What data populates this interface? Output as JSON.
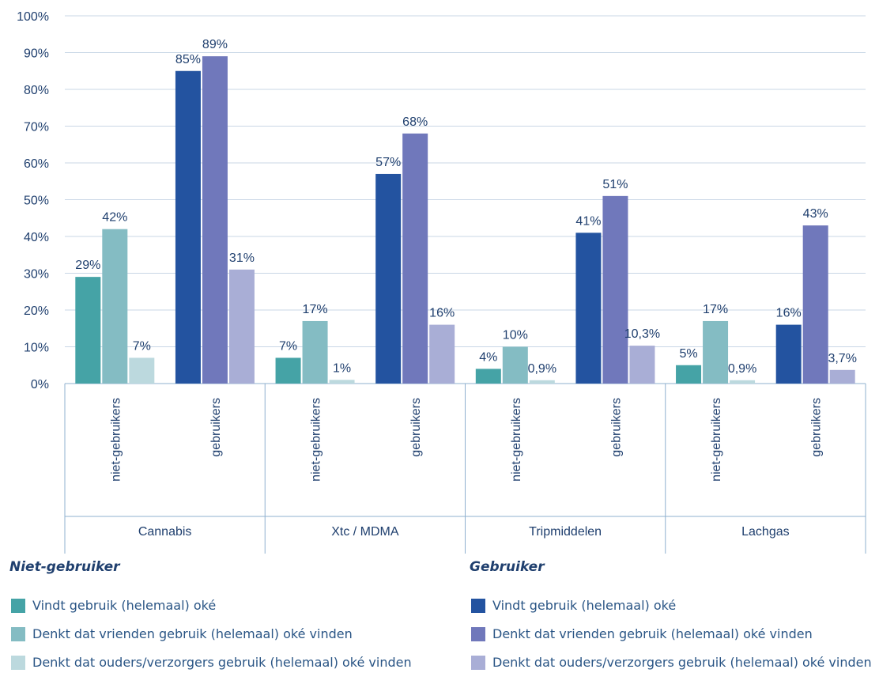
{
  "chart_data": {
    "type": "bar",
    "ylim": [
      0,
      100
    ],
    "y_ticks": [
      "0%",
      "10%",
      "20%",
      "30%",
      "40%",
      "50%",
      "60%",
      "70%",
      "80%",
      "90%",
      "100%"
    ],
    "grid": true,
    "groups": [
      {
        "name": "Cannabis",
        "subgroups": [
          {
            "name": "niet-gebruikers",
            "values": [
              29,
              42,
              7
            ],
            "labels": [
              "29%",
              "42%",
              "7%"
            ]
          },
          {
            "name": "gebruikers",
            "values": [
              85,
              89,
              31
            ],
            "labels": [
              "85%",
              "89%",
              "31%"
            ]
          }
        ]
      },
      {
        "name": "Xtc / MDMA",
        "subgroups": [
          {
            "name": "niet-gebruikers",
            "values": [
              7,
              17,
              1
            ],
            "labels": [
              "7%",
              "17%",
              "1%"
            ]
          },
          {
            "name": "gebruikers",
            "values": [
              57,
              68,
              16
            ],
            "labels": [
              "57%",
              "68%",
              "16%"
            ]
          }
        ]
      },
      {
        "name": "Tripmiddelen",
        "subgroups": [
          {
            "name": "niet-gebruikers",
            "values": [
              4,
              10,
              0.9
            ],
            "labels": [
              "4%",
              "10%",
              "0,9%"
            ]
          },
          {
            "name": "gebruikers",
            "values": [
              41,
              51,
              10.3
            ],
            "labels": [
              "41%",
              "51%",
              "10,3%"
            ]
          }
        ]
      },
      {
        "name": "Lachgas",
        "subgroups": [
          {
            "name": "niet-gebruikers",
            "values": [
              5,
              17,
              0.9
            ],
            "labels": [
              "5%",
              "17%",
              "0,9%"
            ]
          },
          {
            "name": "gebruikers",
            "values": [
              16,
              43,
              3.7
            ],
            "labels": [
              "16%",
              "43%",
              "3,7%"
            ]
          }
        ]
      }
    ],
    "colors": {
      "niet-gebruikers": [
        "#45a3a6",
        "#84bcc3",
        "#bcd9de"
      ],
      "gebruikers": [
        "#2353a0",
        "#7078bb",
        "#a9aed6"
      ]
    },
    "legend": {
      "placement": "bottom",
      "groups": [
        {
          "title": "Niet-gebruiker",
          "items": [
            {
              "label": "Vindt gebruik (helemaal) oké",
              "color": "#45a3a6"
            },
            {
              "label": "Denkt dat vrienden gebruik (helemaal) oké vinden",
              "color": "#84bcc3"
            },
            {
              "label": "Denkt dat ouders/verzorgers gebruik (helemaal) oké vinden",
              "color": "#bcd9de"
            }
          ]
        },
        {
          "title": "Gebruiker",
          "items": [
            {
              "label": "Vindt gebruik (helemaal) oké",
              "color": "#2353a0"
            },
            {
              "label": "Denkt dat vrienden gebruik (helemaal) oké vinden",
              "color": "#7078bb"
            },
            {
              "label": "Denkt dat ouders/verzorgers gebruik (helemaal) oké vinden",
              "color": "#a9aed6"
            }
          ]
        }
      ]
    }
  }
}
